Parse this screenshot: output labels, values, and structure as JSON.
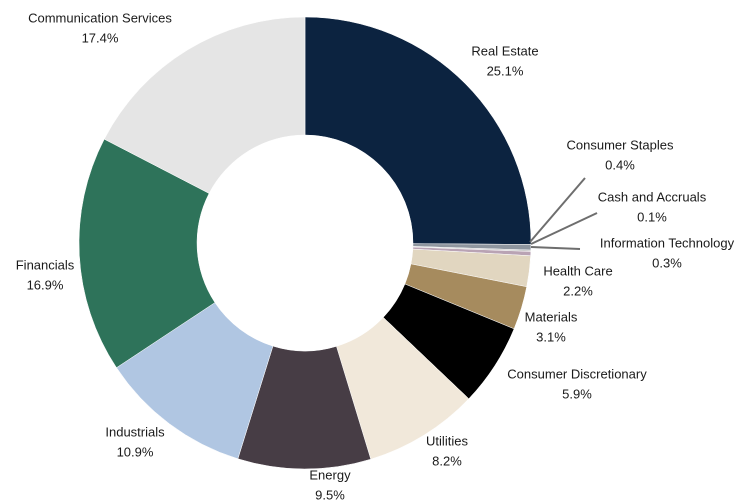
{
  "chart_data": {
    "type": "donut",
    "categories": [
      "Real Estate",
      "Consumer Staples",
      "Cash and Accruals",
      "Information Technology",
      "Health Care",
      "Materials",
      "Consumer Discretionary",
      "Utilities",
      "Energy",
      "Industrials",
      "Financials",
      "Communication Services"
    ],
    "values": [
      25.1,
      0.4,
      0.1,
      0.3,
      2.2,
      3.1,
      5.9,
      8.2,
      9.5,
      10.9,
      16.9,
      17.4
    ],
    "value_labels": [
      "25.1%",
      "0.4%",
      "0.1%",
      "0.3%",
      "2.2%",
      "3.1%",
      "5.9%",
      "8.2%",
      "9.5%",
      "10.9%",
      "16.9%",
      "17.4%"
    ],
    "colors": [
      "#0c2340",
      "#8f969f",
      "#c4c4c4",
      "#b9a3b4",
      "#e1d6c0",
      "#a68b5e",
      "#000000",
      "#f1e8da",
      "#473d45",
      "#b0c6e2",
      "#2e735a",
      "#e5e5e5"
    ]
  }
}
